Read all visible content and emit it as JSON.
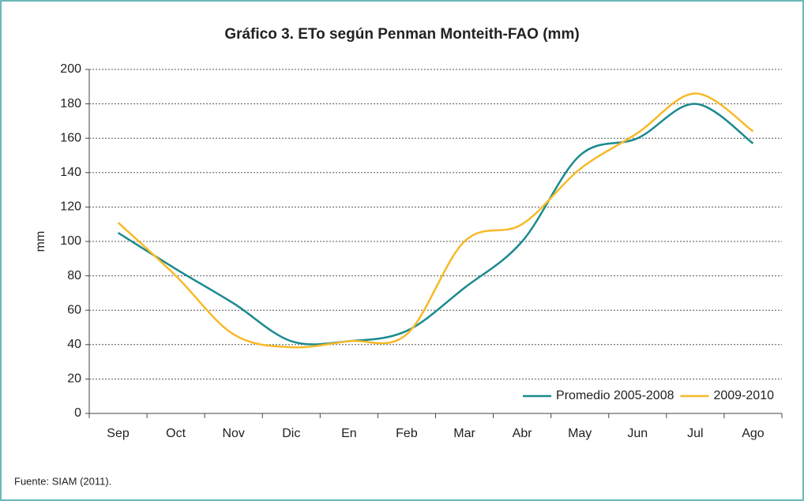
{
  "chart_data": {
    "type": "line",
    "title": "Gráfico 3. ETo según Penman Monteith-FAO (mm)",
    "y_label": "mm",
    "source": "Fuente: SIAM (2011).",
    "categories": [
      "Sep",
      "Oct",
      "Nov",
      "Dic",
      "En",
      "Feb",
      "Mar",
      "Abr",
      "May",
      "Jun",
      "Jul",
      "Ago"
    ],
    "series": [
      {
        "name": "Promedio 2005-2008",
        "color": "#1a8a8e",
        "values": [
          105,
          84,
          64,
          42,
          42,
          48,
          73,
          100,
          150,
          160,
          180,
          157
        ]
      },
      {
        "name": "2009-2010",
        "color": "#f7b928",
        "values": [
          111,
          80,
          46,
          38.5,
          42,
          46,
          100,
          110,
          142,
          163,
          186,
          164
        ]
      }
    ],
    "ylim": [
      0,
      200
    ],
    "yticks": [
      0,
      20,
      40,
      60,
      80,
      100,
      120,
      140,
      160,
      180,
      200
    ],
    "grid": true,
    "legend": "lower right"
  }
}
